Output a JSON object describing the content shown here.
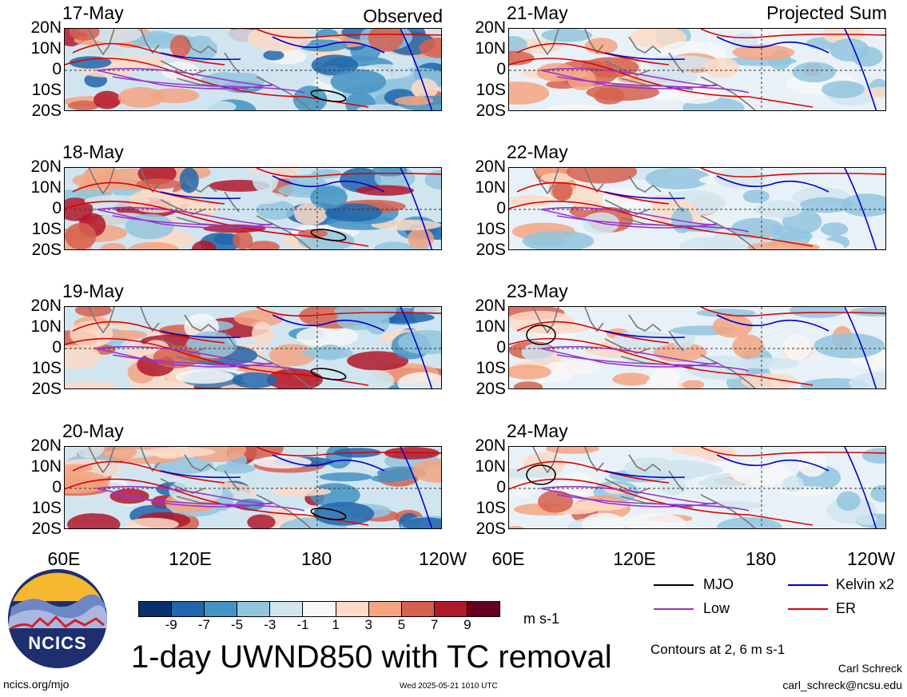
{
  "headers": {
    "observed": "Observed",
    "projected": "Projected Sum"
  },
  "panels_left": [
    {
      "date": "17-May"
    },
    {
      "date": "18-May"
    },
    {
      "date": "19-May"
    },
    {
      "date": "20-May"
    }
  ],
  "panels_right": [
    {
      "date": "21-May"
    },
    {
      "date": "22-May"
    },
    {
      "date": "23-May"
    },
    {
      "date": "24-May"
    }
  ],
  "lat_labels": [
    "20N",
    "10N",
    "0",
    "10S",
    "20S"
  ],
  "lon_labels": [
    "60E",
    "120E",
    "180",
    "120W"
  ],
  "lon_labels_right": [
    "60E",
    "120E",
    "180",
    "120W"
  ],
  "colorbar": {
    "colors": [
      "#08306b",
      "#2166ac",
      "#4393c3",
      "#92c5de",
      "#d1e5f0",
      "#f7f7f7",
      "#fddbc7",
      "#f4a582",
      "#d6604d",
      "#b2182b",
      "#67001f"
    ],
    "labels": [
      "-9",
      "-7",
      "-5",
      "-3",
      "-1",
      "1",
      "3",
      "5",
      "7",
      "9"
    ],
    "units": "m s-1"
  },
  "legend": [
    {
      "label": "MJO",
      "color": "#000000"
    },
    {
      "label": "Kelvin x2",
      "color": "#0000cc"
    },
    {
      "label": "Low",
      "color": "#9933cc"
    },
    {
      "label": "ER",
      "color": "#e00000"
    }
  ],
  "contours_note": "Contours at 2, 6 m s-1",
  "title": "1-day UWND850 with TC removal",
  "logo_text": "NCICS",
  "footer": {
    "url": "ncics.org/mjo",
    "timestamp": "Wed 2025-05-21 1010 UTC",
    "author": "Carl Schreck",
    "email": "carl_schreck@ncsu.edu"
  }
}
